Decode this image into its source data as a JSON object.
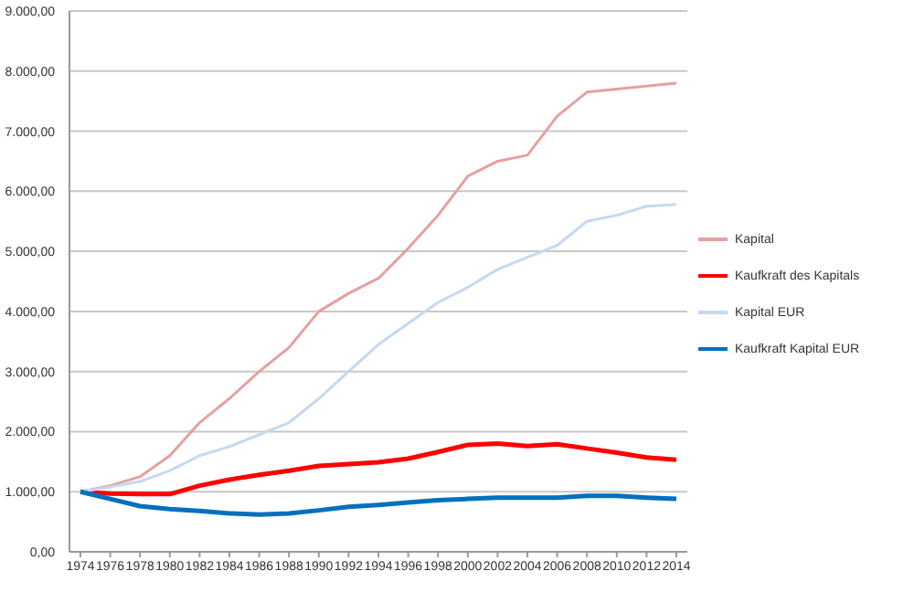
{
  "chart_data": {
    "type": "line",
    "categories": [
      "1974",
      "1976",
      "1978",
      "1980",
      "1982",
      "1984",
      "1986",
      "1988",
      "1990",
      "1992",
      "1994",
      "1996",
      "1998",
      "2000",
      "2002",
      "2004",
      "2006",
      "2008",
      "2010",
      "2012",
      "2014"
    ],
    "series": [
      {
        "name": "Kapital",
        "color": "#e6a0a0",
        "values": [
          1000,
          1100,
          1250,
          1600,
          2150,
          2550,
          3000,
          3400,
          4000,
          4300,
          4550,
          5050,
          5600,
          6250,
          6500,
          6600,
          7250,
          7650,
          7700,
          7750,
          7800
        ]
      },
      {
        "name": "Kaufkraft des Kapitals",
        "color": "#ff0000",
        "values": [
          1000,
          970,
          960,
          960,
          1100,
          1200,
          1280,
          1350,
          1430,
          1460,
          1490,
          1550,
          1660,
          1780,
          1800,
          1760,
          1790,
          1720,
          1650,
          1570,
          1530
        ]
      },
      {
        "name": "Kapital EUR",
        "color": "#c5d9f1",
        "values": [
          1000,
          1080,
          1170,
          1350,
          1600,
          1750,
          1950,
          2150,
          2550,
          3000,
          3450,
          3800,
          4150,
          4400,
          4700,
          4900,
          5100,
          5500,
          5600,
          5750,
          5780
        ]
      },
      {
        "name": "Kaufkraft Kapital EUR",
        "color": "#0070c0",
        "values": [
          1000,
          880,
          760,
          710,
          680,
          640,
          620,
          640,
          690,
          750,
          780,
          820,
          860,
          880,
          900,
          900,
          900,
          930,
          930,
          900,
          880
        ]
      }
    ],
    "ylim": [
      0,
      9000
    ],
    "yticks": [
      {
        "value": 0,
        "label": "0,00"
      },
      {
        "value": 1000,
        "label": "1.000,00"
      },
      {
        "value": 2000,
        "label": "2.000,00"
      },
      {
        "value": 3000,
        "label": "3.000,00"
      },
      {
        "value": 4000,
        "label": "4.000,00"
      },
      {
        "value": 5000,
        "label": "5.000,00"
      },
      {
        "value": 6000,
        "label": "6.000,00"
      },
      {
        "value": 7000,
        "label": "7.000,00"
      },
      {
        "value": 8000,
        "label": "8.000,00"
      },
      {
        "value": 9000,
        "label": "9.000,00"
      }
    ],
    "grid": "y",
    "legend": "right",
    "marker": "none",
    "line_style": "solid"
  }
}
